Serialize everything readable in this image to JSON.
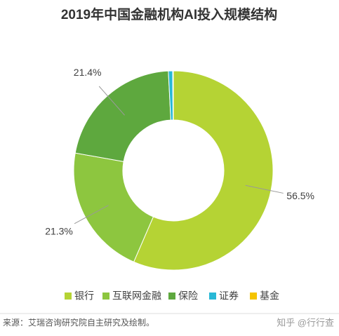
{
  "chart_data": {
    "type": "pie",
    "title": "2019年中国金融机构AI投入规模结构",
    "categories": [
      "银行",
      "互联网金融",
      "保险",
      "证券",
      "基金"
    ],
    "values": [
      56.5,
      21.3,
      21.4,
      0.7,
      0.1
    ],
    "value_labels": [
      "56.5%",
      "21.3%",
      "21.4%",
      null,
      null
    ],
    "colors": [
      "#b5d334",
      "#8dc63f",
      "#5ea83e",
      "#28b8d6",
      "#f5c400"
    ],
    "legend": "bottom"
  },
  "source": "来源：艾瑞咨询研究院自主研究及绘制。",
  "watermark": "知乎 @行行查"
}
